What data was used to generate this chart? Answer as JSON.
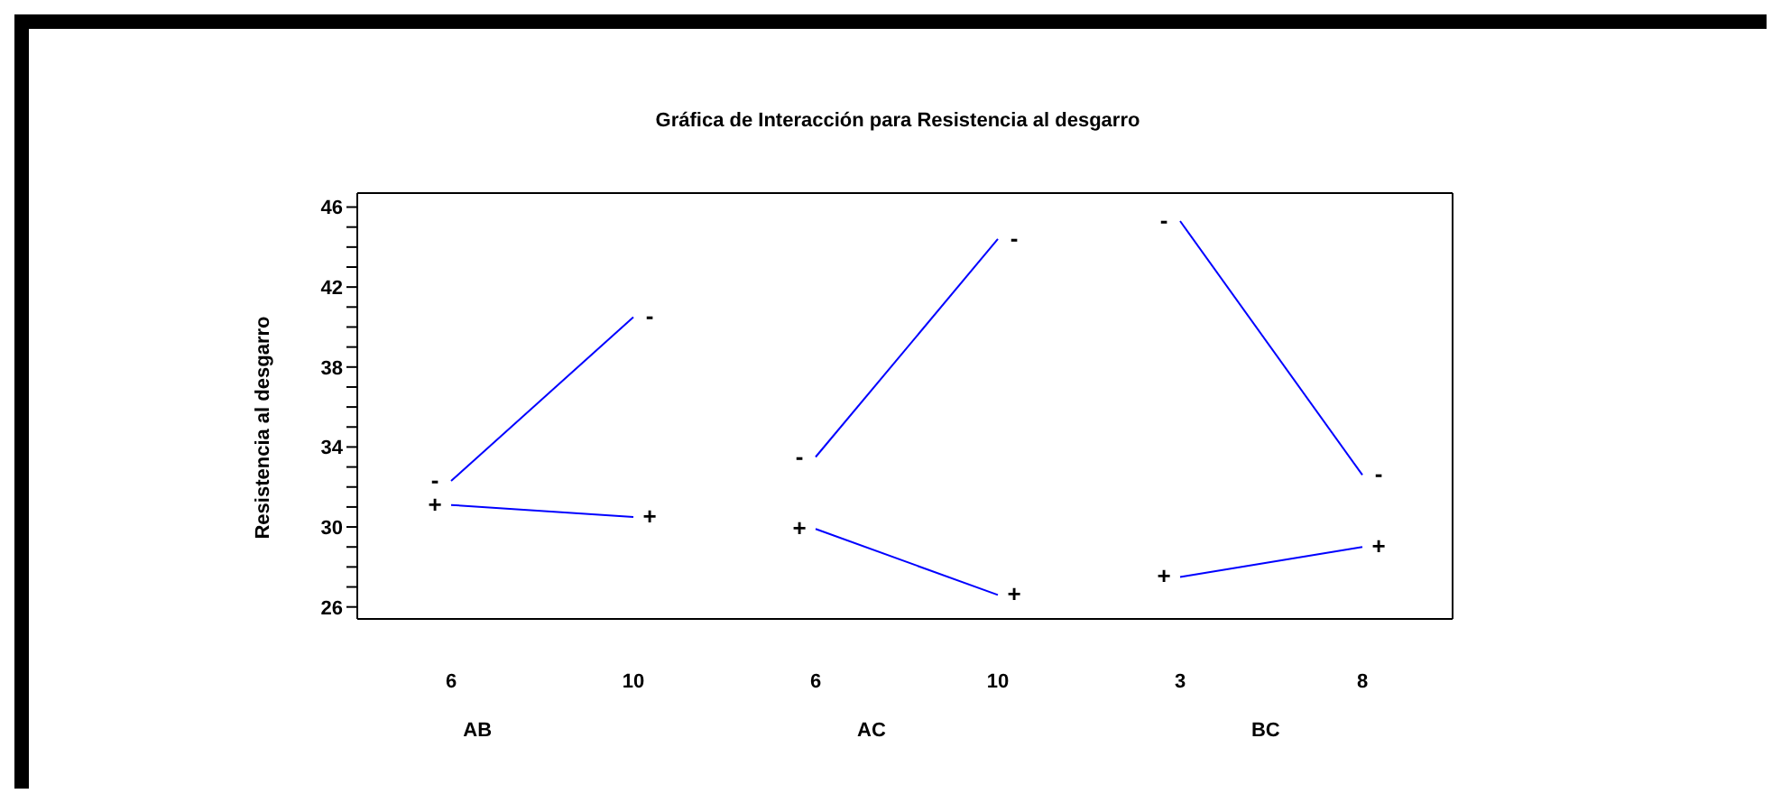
{
  "chart_data": {
    "type": "line",
    "title": "Gráfica de Interacción para Resistencia al desgarro",
    "ylabel": "Resistencia al desgarro",
    "categories": [
      "6",
      "10",
      "6",
      "10",
      "3",
      "8"
    ],
    "annotations": [
      "AB",
      "AC",
      "BC"
    ],
    "series": [
      {
        "name": "-",
        "color": "#0000ff",
        "values": [
          32.3,
          40.5,
          null,
          null,
          null,
          null
        ]
      },
      {
        "name": "+",
        "color": "#0000ff",
        "values": [
          31.1,
          30.5,
          null,
          null,
          null,
          null
        ]
      },
      {
        "name": "-",
        "color": "#0000ff",
        "values": [
          null,
          null,
          33.5,
          44.4,
          null,
          null
        ]
      },
      {
        "name": "+",
        "color": "#0000ff",
        "values": [
          null,
          null,
          29.9,
          26.6,
          null,
          null
        ]
      },
      {
        "name": "-",
        "color": "#0000ff",
        "values": [
          null,
          null,
          null,
          null,
          45.3,
          32.6
        ]
      },
      {
        "name": "+",
        "color": "#0000ff",
        "values": [
          null,
          null,
          null,
          null,
          27.5,
          29.0
        ]
      }
    ],
    "ylim": [
      25.4,
      46.7
    ],
    "yticks": [
      26,
      {
        "value": 27,
        "label": null
      },
      {
        "value": 28,
        "label": null
      },
      {
        "value": 29,
        "label": null
      },
      30,
      {
        "value": 31,
        "label": null
      },
      {
        "value": 32,
        "label": null
      },
      {
        "value": 33,
        "label": null
      },
      34,
      {
        "value": 35,
        "label": null
      },
      {
        "value": 36,
        "label": null
      },
      {
        "value": 37,
        "label": null
      },
      38,
      {
        "value": 39,
        "label": null
      },
      {
        "value": 40,
        "label": null
      },
      {
        "value": 41,
        "label": null
      },
      42,
      {
        "value": 43,
        "label": null
      },
      {
        "value": 44,
        "label": null
      },
      {
        "value": 45,
        "label": null
      },
      46
    ],
    "marker": "none",
    "line_style": "solid"
  }
}
